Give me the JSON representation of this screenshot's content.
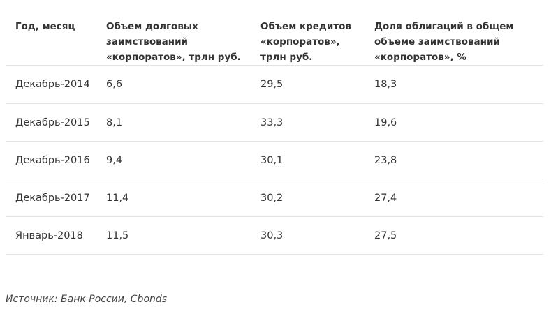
{
  "table": {
    "headers": [
      "Год, месяц",
      "Объем долговых заимствований «корпоратов», трлн руб.",
      "Объем кредитов «корпоратов», трлн руб.",
      "Доля облигаций в общем объеме заимствований «корпоратов», %"
    ],
    "rows": [
      [
        "Декабрь-2014",
        "6,6",
        "29,5",
        "18,3"
      ],
      [
        "Декабрь-2015",
        "8,1",
        "33,3",
        "19,6"
      ],
      [
        "Декабрь-2016",
        "9,4",
        "30,1",
        "23,8"
      ],
      [
        "Декабрь-2017",
        "11,4",
        "30,2",
        "27,4"
      ],
      [
        "Январь-2018",
        "11,5",
        "30,3",
        "27,5"
      ]
    ]
  },
  "source": "Источник: Банк России, Cbonds"
}
